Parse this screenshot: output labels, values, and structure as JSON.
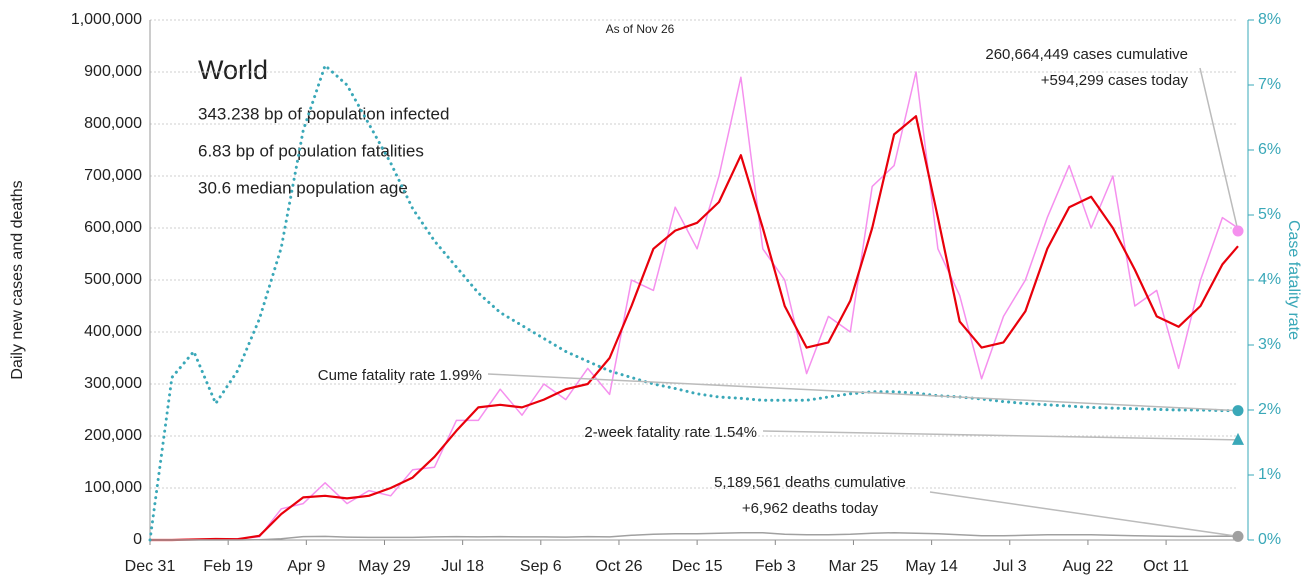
{
  "chart_data": {
    "type": "line",
    "title": "World",
    "subtitle": "As of Nov 26",
    "notes": [
      "343.238 bp of population infected",
      "6.83 bp of population fatalities",
      "30.6 median population age"
    ],
    "y_label": "Daily new cases and deaths",
    "y2_label": "Case fatality rate",
    "x": [
      0,
      14,
      28,
      42,
      56,
      70,
      84,
      98,
      112,
      126,
      140,
      154,
      168,
      182,
      196,
      210,
      224,
      238,
      252,
      266,
      280,
      294,
      308,
      322,
      336,
      350,
      364,
      378,
      392,
      406,
      420,
      434,
      448,
      462,
      476,
      490,
      504,
      518,
      532,
      546,
      560,
      574,
      588,
      602,
      616,
      630,
      644,
      658,
      672,
      686,
      696
    ],
    "xlim": [
      0,
      696
    ],
    "xticks": [
      {
        "value": 0,
        "label": "Dec 31"
      },
      {
        "value": 50,
        "label": "Feb 19"
      },
      {
        "value": 100,
        "label": "Apr 9"
      },
      {
        "value": 150,
        "label": "May 29"
      },
      {
        "value": 200,
        "label": "Jul 18"
      },
      {
        "value": 250,
        "label": "Sep 6"
      },
      {
        "value": 300,
        "label": "Oct 26"
      },
      {
        "value": 350,
        "label": "Dec 15"
      },
      {
        "value": 400,
        "label": "Feb 3"
      },
      {
        "value": 450,
        "label": "Mar 25"
      },
      {
        "value": 500,
        "label": "May 14"
      },
      {
        "value": 550,
        "label": "Jul 3"
      },
      {
        "value": 600,
        "label": "Aug 22"
      },
      {
        "value": 650,
        "label": "Oct 11"
      }
    ],
    "ylim": [
      0,
      1000000
    ],
    "yticks": [
      {
        "value": 0,
        "label": "0"
      },
      {
        "value": 100000,
        "label": "100,000"
      },
      {
        "value": 200000,
        "label": "200,000"
      },
      {
        "value": 300000,
        "label": "300,000"
      },
      {
        "value": 400000,
        "label": "400,000"
      },
      {
        "value": 500000,
        "label": "500,000"
      },
      {
        "value": 600000,
        "label": "600,000"
      },
      {
        "value": 700000,
        "label": "700,000"
      },
      {
        "value": 800000,
        "label": "800,000"
      },
      {
        "value": 900000,
        "label": "900,000"
      },
      {
        "value": 1000000,
        "label": "1,000,000"
      }
    ],
    "y2lim": [
      0,
      8
    ],
    "y2ticks": [
      {
        "value": 0,
        "label": "0%"
      },
      {
        "value": 1,
        "label": "1%"
      },
      {
        "value": 2,
        "label": "2%"
      },
      {
        "value": 3,
        "label": "3%"
      },
      {
        "value": 4,
        "label": "4%"
      },
      {
        "value": 5,
        "label": "5%"
      },
      {
        "value": 6,
        "label": "6%"
      },
      {
        "value": 7,
        "label": "7%"
      },
      {
        "value": 8,
        "label": "8%"
      }
    ],
    "grid": true,
    "series": [
      {
        "color": "#f590ee",
        "values": [
          0,
          0,
          1500,
          1500,
          2500,
          6000,
          60000,
          70000,
          110000,
          70000,
          95000,
          85000,
          135000,
          140000,
          230000,
          230000,
          290000,
          240000,
          300000,
          270000,
          330000,
          280000,
          500000,
          480000,
          640000,
          560000,
          700000,
          890000,
          560000,
          500000,
          320000,
          430000,
          400000,
          680000,
          720000,
          900000,
          560000,
          470000,
          310000,
          430000,
          500000,
          620000,
          720000,
          600000,
          700000,
          450000,
          480000,
          330000,
          500000,
          620000,
          600000
        ]
      },
      {
        "color": "#e8000b",
        "values": [
          0,
          0,
          1000,
          2000,
          1500,
          8000,
          50000,
          82000,
          85000,
          80000,
          85000,
          100000,
          120000,
          160000,
          210000,
          255000,
          260000,
          255000,
          270000,
          290000,
          300000,
          350000,
          450000,
          560000,
          595000,
          610000,
          650000,
          740000,
          600000,
          450000,
          370000,
          380000,
          460000,
          600000,
          780000,
          815000,
          620000,
          420000,
          370000,
          380000,
          440000,
          560000,
          640000,
          660000,
          600000,
          520000,
          430000,
          410000,
          450000,
          530000,
          565000
        ]
      },
      {
        "color": "#a0a0a0",
        "values": [
          0,
          0,
          0,
          0,
          0,
          500,
          2500,
          6500,
          7000,
          5500,
          5000,
          5000,
          5000,
          6000,
          6500,
          6000,
          6500,
          6000,
          6000,
          5500,
          6500,
          6000,
          9000,
          11000,
          12000,
          12000,
          13000,
          14000,
          14000,
          11000,
          10000,
          10000,
          11000,
          13000,
          14000,
          13000,
          12000,
          10000,
          8000,
          8000,
          9000,
          10000,
          10000,
          10000,
          9000,
          8000,
          7500,
          7000,
          7000,
          7500,
          7000
        ]
      },
      {
        "color": "#3aa8b8",
        "axis": "y2",
        "dotted": true,
        "values": [
          0,
          2.5,
          2.9,
          2.1,
          2.6,
          3.4,
          4.5,
          6.3,
          7.3,
          7.0,
          6.4,
          5.8,
          5.1,
          4.6,
          4.2,
          3.8,
          3.5,
          3.3,
          3.1,
          2.9,
          2.75,
          2.6,
          2.5,
          2.4,
          2.33,
          2.25,
          2.2,
          2.18,
          2.15,
          2.15,
          2.15,
          2.2,
          2.25,
          2.28,
          2.28,
          2.26,
          2.22,
          2.2,
          2.17,
          2.13,
          2.1,
          2.08,
          2.06,
          2.04,
          2.03,
          2.02,
          2.01,
          2.0,
          2.0,
          1.99,
          1.99
        ]
      }
    ],
    "annotations": [
      {
        "lines": [
          "260,664,449 cases cumulative",
          "+594,299 cases today"
        ],
        "value": 594299,
        "axis": "y",
        "color": "#f590ee",
        "marker": "circle"
      },
      {
        "lines": [
          "Cume fatality rate 1.99%"
        ],
        "value": 1.99,
        "axis": "y2",
        "color": "#3aa8b8",
        "marker": "circle"
      },
      {
        "lines": [
          "2-week fatality rate 1.54%"
        ],
        "value": 1.54,
        "axis": "y2",
        "color": "#3aa8b8",
        "marker": "triangle"
      },
      {
        "lines": [
          "5,189,561 deaths cumulative",
          "+6,962 deaths today"
        ],
        "value": 6962,
        "axis": "y",
        "color": "#a0a0a0",
        "marker": "circle"
      }
    ]
  }
}
